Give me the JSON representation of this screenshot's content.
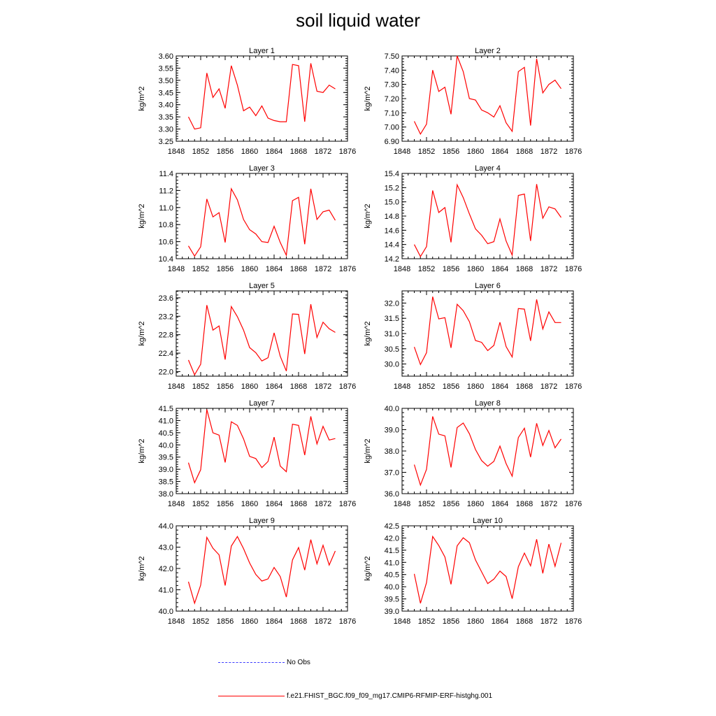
{
  "title": "soil liquid water",
  "legend": {
    "obs_label": "No Obs",
    "model_label": "f.e21.FHIST_BGC.f09_f09_mg17.CMIP6-RFMIP-ERF-histghg.001",
    "obs_color": "#3b3bff",
    "model_color": "#ff0000"
  },
  "chart_data": [
    {
      "type": "line",
      "title": "Layer 1",
      "ylabel": "kg/m^2",
      "xlim": [
        1848,
        1876
      ],
      "xticks": [
        1848,
        1852,
        1856,
        1860,
        1864,
        1868,
        1872,
        1876
      ],
      "ylim": [
        3.25,
        3.6
      ],
      "yticks": [
        "3.25",
        "3.30",
        "3.35",
        "3.40",
        "3.45",
        "3.50",
        "3.55",
        "3.60"
      ],
      "x": [
        1850,
        1851,
        1852,
        1853,
        1854,
        1855,
        1856,
        1857,
        1858,
        1859,
        1860,
        1861,
        1862,
        1863,
        1864,
        1865,
        1866,
        1867,
        1868,
        1869,
        1870,
        1871,
        1872,
        1873,
        1874
      ],
      "values": [
        3.35,
        3.3,
        3.305,
        3.53,
        3.43,
        3.465,
        3.385,
        3.56,
        3.48,
        3.375,
        3.39,
        3.355,
        3.395,
        3.345,
        3.335,
        3.33,
        3.33,
        3.565,
        3.56,
        3.33,
        3.57,
        3.455,
        3.45,
        3.48,
        3.465
      ]
    },
    {
      "type": "line",
      "title": "Layer 2",
      "ylabel": "kg/m^2",
      "xlim": [
        1848,
        1876
      ],
      "xticks": [
        1848,
        1852,
        1856,
        1860,
        1864,
        1868,
        1872,
        1876
      ],
      "ylim": [
        6.9,
        7.5
      ],
      "yticks": [
        "6.90",
        "7.00",
        "7.10",
        "7.20",
        "7.30",
        "7.40",
        "7.50"
      ],
      "x": [
        1850,
        1851,
        1852,
        1853,
        1854,
        1855,
        1856,
        1857,
        1858,
        1859,
        1860,
        1861,
        1862,
        1863,
        1864,
        1865,
        1866,
        1867,
        1868,
        1869,
        1870,
        1871,
        1872,
        1873,
        1874
      ],
      "values": [
        7.04,
        6.95,
        7.02,
        7.4,
        7.25,
        7.28,
        7.09,
        7.5,
        7.39,
        7.2,
        7.19,
        7.12,
        7.1,
        7.07,
        7.15,
        7.03,
        6.97,
        7.39,
        7.42,
        7.01,
        7.48,
        7.24,
        7.3,
        7.33,
        7.27
      ]
    },
    {
      "type": "line",
      "title": "Layer 3",
      "ylabel": "kg/m^2",
      "xlim": [
        1848,
        1876
      ],
      "xticks": [
        1848,
        1852,
        1856,
        1860,
        1864,
        1868,
        1872,
        1876
      ],
      "ylim": [
        10.4,
        11.4
      ],
      "yticks": [
        "10.4",
        "10.6",
        "10.8",
        "11.0",
        "11.2",
        "11.4"
      ],
      "x": [
        1850,
        1851,
        1852,
        1853,
        1854,
        1855,
        1856,
        1857,
        1858,
        1859,
        1860,
        1861,
        1862,
        1863,
        1864,
        1865,
        1866,
        1867,
        1868,
        1869,
        1870,
        1871,
        1872,
        1873,
        1874
      ],
      "values": [
        10.55,
        10.43,
        10.54,
        11.1,
        10.89,
        10.94,
        10.59,
        11.22,
        11.09,
        10.86,
        10.74,
        10.69,
        10.6,
        10.59,
        10.78,
        10.59,
        10.44,
        11.08,
        11.12,
        10.57,
        11.22,
        10.86,
        10.95,
        10.97,
        10.85
      ]
    },
    {
      "type": "line",
      "title": "Layer 4",
      "ylabel": "kg/m^2",
      "xlim": [
        1848,
        1876
      ],
      "xticks": [
        1848,
        1852,
        1856,
        1860,
        1864,
        1868,
        1872,
        1876
      ],
      "ylim": [
        14.2,
        15.4
      ],
      "yticks": [
        "14.2",
        "14.4",
        "14.6",
        "14.8",
        "15.0",
        "15.2",
        "15.4"
      ],
      "x": [
        1850,
        1851,
        1852,
        1853,
        1854,
        1855,
        1856,
        1857,
        1858,
        1859,
        1860,
        1861,
        1862,
        1863,
        1864,
        1865,
        1866,
        1867,
        1868,
        1869,
        1870,
        1871,
        1872,
        1873,
        1874
      ],
      "values": [
        14.4,
        14.23,
        14.37,
        15.16,
        14.85,
        14.92,
        14.43,
        15.24,
        15.06,
        14.83,
        14.62,
        14.53,
        14.41,
        14.44,
        14.76,
        14.45,
        14.25,
        15.09,
        15.11,
        14.45,
        15.25,
        14.77,
        14.93,
        14.9,
        14.78
      ]
    },
    {
      "type": "line",
      "title": "Layer 5",
      "ylabel": "kg/m^2",
      "xlim": [
        1848,
        1876
      ],
      "xticks": [
        1848,
        1852,
        1856,
        1860,
        1864,
        1868,
        1872,
        1876
      ],
      "ylim": [
        21.9,
        23.75
      ],
      "yticks": [
        "22.0",
        "22.4",
        "22.8",
        "23.2",
        "23.6"
      ],
      "x": [
        1850,
        1851,
        1852,
        1853,
        1854,
        1855,
        1856,
        1857,
        1858,
        1859,
        1860,
        1861,
        1862,
        1863,
        1864,
        1865,
        1866,
        1867,
        1868,
        1869,
        1870,
        1871,
        1872,
        1873,
        1874
      ],
      "values": [
        22.25,
        21.93,
        22.16,
        23.44,
        22.9,
        22.99,
        22.26,
        23.41,
        23.19,
        22.9,
        22.52,
        22.41,
        22.23,
        22.3,
        22.84,
        22.33,
        22.01,
        23.25,
        23.24,
        22.38,
        23.46,
        22.74,
        23.07,
        22.93,
        22.85
      ]
    },
    {
      "type": "line",
      "title": "Layer 6",
      "ylabel": "kg/m^2",
      "xlim": [
        1848,
        1876
      ],
      "xticks": [
        1848,
        1852,
        1856,
        1860,
        1864,
        1868,
        1872,
        1876
      ],
      "ylim": [
        29.6,
        32.4
      ],
      "yticks": [
        "30.0",
        "30.5",
        "31.0",
        "31.5",
        "32.0"
      ],
      "x": [
        1850,
        1851,
        1852,
        1853,
        1854,
        1855,
        1856,
        1857,
        1858,
        1859,
        1860,
        1861,
        1862,
        1863,
        1864,
        1865,
        1866,
        1867,
        1868,
        1869,
        1870,
        1871,
        1872,
        1873,
        1874
      ],
      "values": [
        30.56,
        29.98,
        30.37,
        32.21,
        31.48,
        31.52,
        30.53,
        31.96,
        31.75,
        31.39,
        30.77,
        30.71,
        30.44,
        30.61,
        31.37,
        30.57,
        30.23,
        31.82,
        31.8,
        30.76,
        32.12,
        31.15,
        31.71,
        31.36,
        31.36
      ]
    },
    {
      "type": "line",
      "title": "Layer 7",
      "ylabel": "kg/m^2",
      "xlim": [
        1848,
        1876
      ],
      "xticks": [
        1848,
        1852,
        1856,
        1860,
        1864,
        1868,
        1872,
        1876
      ],
      "ylim": [
        38.0,
        41.5
      ],
      "yticks": [
        "38.0",
        "38.5",
        "39.0",
        "39.5",
        "40.0",
        "40.5",
        "41.0",
        "41.5"
      ],
      "x": [
        1850,
        1851,
        1852,
        1853,
        1854,
        1855,
        1856,
        1857,
        1858,
        1859,
        1860,
        1861,
        1862,
        1863,
        1864,
        1865,
        1866,
        1867,
        1868,
        1869,
        1870,
        1871,
        1872,
        1873,
        1874
      ],
      "values": [
        39.27,
        38.45,
        38.98,
        41.45,
        40.5,
        40.4,
        39.28,
        40.95,
        40.8,
        40.25,
        39.53,
        39.44,
        39.07,
        39.32,
        40.32,
        39.13,
        38.9,
        40.85,
        40.8,
        39.58,
        41.17,
        40.04,
        40.76,
        40.2,
        40.26
      ]
    },
    {
      "type": "line",
      "title": "Layer 8",
      "ylabel": "kg/m^2",
      "xlim": [
        1848,
        1876
      ],
      "xticks": [
        1848,
        1852,
        1856,
        1860,
        1864,
        1868,
        1872,
        1876
      ],
      "ylim": [
        36.0,
        40.0
      ],
      "yticks": [
        "36.0",
        "37.0",
        "38.0",
        "39.0",
        "40.0"
      ],
      "x": [
        1850,
        1851,
        1852,
        1853,
        1854,
        1855,
        1856,
        1857,
        1858,
        1859,
        1860,
        1861,
        1862,
        1863,
        1864,
        1865,
        1866,
        1867,
        1868,
        1869,
        1870,
        1871,
        1872,
        1873,
        1874
      ],
      "values": [
        37.36,
        36.4,
        37.14,
        39.62,
        38.79,
        38.71,
        37.23,
        39.1,
        39.31,
        38.81,
        38.07,
        37.55,
        37.29,
        37.51,
        38.23,
        37.41,
        36.82,
        38.63,
        39.07,
        37.71,
        39.3,
        38.26,
        38.96,
        38.15,
        38.56
      ]
    },
    {
      "type": "line",
      "title": "Layer 9",
      "ylabel": "kg/m^2",
      "xlim": [
        1848,
        1876
      ],
      "xticks": [
        1848,
        1852,
        1856,
        1860,
        1864,
        1868,
        1872,
        1876
      ],
      "ylim": [
        40.0,
        44.0
      ],
      "yticks": [
        "40.0",
        "41.0",
        "42.0",
        "43.0",
        "44.0"
      ],
      "x": [
        1850,
        1851,
        1852,
        1853,
        1854,
        1855,
        1856,
        1857,
        1858,
        1859,
        1860,
        1861,
        1862,
        1863,
        1864,
        1865,
        1866,
        1867,
        1868,
        1869,
        1870,
        1871,
        1872,
        1873,
        1874
      ],
      "values": [
        41.38,
        40.37,
        41.22,
        43.46,
        42.95,
        42.64,
        41.2,
        43.05,
        43.5,
        42.93,
        42.26,
        41.72,
        41.41,
        41.51,
        42.05,
        41.62,
        40.66,
        42.4,
        42.98,
        41.92,
        43.35,
        42.22,
        43.09,
        42.16,
        42.82
      ]
    },
    {
      "type": "line",
      "title": "Layer 10",
      "ylabel": "kg/m^2",
      "xlim": [
        1848,
        1876
      ],
      "xticks": [
        1848,
        1852,
        1856,
        1860,
        1864,
        1868,
        1872,
        1876
      ],
      "ylim": [
        39.0,
        42.5
      ],
      "yticks": [
        "39.0",
        "39.5",
        "40.0",
        "40.5",
        "41.0",
        "41.5",
        "42.0",
        "42.5"
      ],
      "x": [
        1850,
        1851,
        1852,
        1853,
        1854,
        1855,
        1856,
        1857,
        1858,
        1859,
        1860,
        1861,
        1862,
        1863,
        1864,
        1865,
        1866,
        1867,
        1868,
        1869,
        1870,
        1871,
        1872,
        1873,
        1874
      ],
      "values": [
        40.53,
        39.32,
        40.17,
        42.06,
        41.69,
        41.22,
        40.1,
        41.68,
        42.01,
        41.81,
        41.1,
        40.61,
        40.13,
        40.31,
        40.64,
        40.42,
        39.51,
        40.82,
        41.38,
        40.86,
        41.95,
        40.55,
        41.75,
        40.84,
        41.8
      ]
    }
  ]
}
